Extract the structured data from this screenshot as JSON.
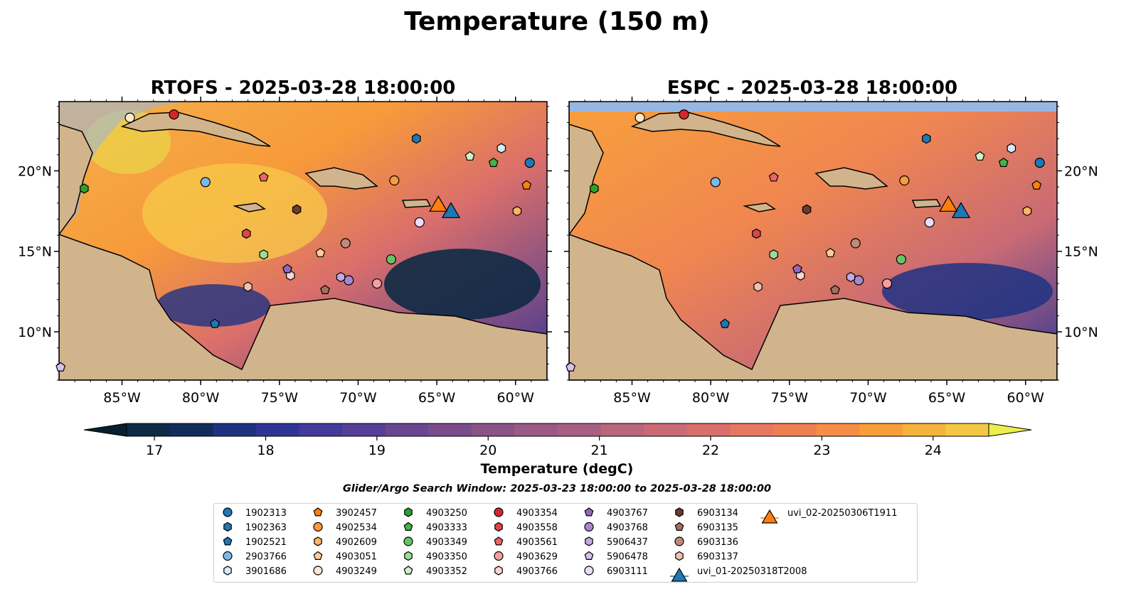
{
  "figure": {
    "suptitle": "Temperature (150 m)",
    "window_text": "Glider/Argo Search Window: 2025-03-23 18:00:00 to 2025-03-28 18:00:00"
  },
  "chart_data": {
    "type": "heatmap",
    "panels": [
      {
        "title": "RTOFS - 2025-03-28 18:00:00",
        "model": "RTOFS"
      },
      {
        "title": "ESPC - 2025-03-28 18:00:00",
        "model": "ESPC"
      }
    ],
    "lon_range": [
      -89,
      -58
    ],
    "lat_range": [
      7,
      24.3
    ],
    "x_ticks": [
      "85°W",
      "80°W",
      "75°W",
      "70°W",
      "65°W",
      "60°W"
    ],
    "x_tick_values": [
      -85,
      -80,
      -75,
      -70,
      -65,
      -60
    ],
    "y_ticks": [
      "20°N",
      "15°N",
      "10°N"
    ],
    "y_tick_values": [
      20,
      15,
      10
    ],
    "colorbar": {
      "label": "Temperature (degC)",
      "min": 16.75,
      "max": 24.5,
      "step": 0.5,
      "ticks": [
        "17",
        "18",
        "19",
        "20",
        "21",
        "22",
        "23",
        "24"
      ],
      "tick_values": [
        17,
        18,
        19,
        20,
        21,
        22,
        23,
        24
      ],
      "colors": [
        "#0e2a45",
        "#102d5c",
        "#1e3282",
        "#2f3596",
        "#433a9c",
        "#563f98",
        "#6a4691",
        "#7b4c8c",
        "#8b5288",
        "#9a5a85",
        "#a95f82",
        "#b9657c",
        "#c96a75",
        "#d96e6c",
        "#e67860",
        "#ef8052",
        "#f58d44",
        "#f79e3a",
        "#f7b23b",
        "#f4c846"
      ],
      "under_color": "#05202f",
      "over_color": "#ecef4a"
    },
    "series": [
      {
        "name": "1902313",
        "marker": "circle",
        "color": "#1f77b4",
        "lon": -59.1,
        "lat": 20.5
      },
      {
        "name": "1902363",
        "marker": "hexagon",
        "color": "#1f77b4",
        "lon": -66.3,
        "lat": 22.0
      },
      {
        "name": "1902521",
        "marker": "pentagon",
        "color": "#1f77b4",
        "lon": -79.1,
        "lat": 10.5
      },
      {
        "name": "2903766",
        "marker": "circle",
        "color": "#7db9e8",
        "lon": -79.7,
        "lat": 19.3
      },
      {
        "name": "3901686",
        "marker": "hexagon",
        "color": "#d6ebfa",
        "lon": -60.9,
        "lat": 21.4
      },
      {
        "name": "3902457",
        "marker": "pentagon",
        "color": "#ff7f0e",
        "lon": -59.3,
        "lat": 19.1
      },
      {
        "name": "4902534",
        "marker": "circle",
        "color": "#ff9a3c",
        "lon": -67.7,
        "lat": 19.4
      },
      {
        "name": "4902609",
        "marker": "hexagon",
        "color": "#ffb366",
        "lon": -59.9,
        "lat": 17.5
      },
      {
        "name": "4903051",
        "marker": "pentagon",
        "color": "#ffcc99",
        "lon": -72.4,
        "lat": 14.9
      },
      {
        "name": "4903249",
        "marker": "circle",
        "color": "#ffe6cc",
        "lon": -84.5,
        "lat": 23.3
      },
      {
        "name": "4903250",
        "marker": "hexagon",
        "color": "#2ca02c",
        "lon": -87.4,
        "lat": 18.9
      },
      {
        "name": "4903333",
        "marker": "pentagon",
        "color": "#44b244",
        "lon": -61.4,
        "lat": 20.5
      },
      {
        "name": "4903349",
        "marker": "circle",
        "color": "#66c466",
        "lon": -67.9,
        "lat": 14.5
      },
      {
        "name": "4903350",
        "marker": "hexagon",
        "color": "#99dd99",
        "lon": -76.0,
        "lat": 14.8
      },
      {
        "name": "4903352",
        "marker": "pentagon",
        "color": "#ccf2cc",
        "lon": -62.9,
        "lat": 20.9
      },
      {
        "name": "4903354",
        "marker": "circle",
        "color": "#d62728",
        "lon": -81.7,
        "lat": 23.5
      },
      {
        "name": "4903558",
        "marker": "hexagon",
        "color": "#e04444",
        "lon": -77.1,
        "lat": 16.1
      },
      {
        "name": "4903561",
        "marker": "pentagon",
        "color": "#e86666",
        "lon": -76.0,
        "lat": 19.6
      },
      {
        "name": "4903629",
        "marker": "circle",
        "color": "#f4a0a0",
        "lon": -68.8,
        "lat": 13.0
      },
      {
        "name": "4903766",
        "marker": "hexagon",
        "color": "#fad4d4",
        "lon": -74.3,
        "lat": 13.5
      },
      {
        "name": "4903767",
        "marker": "pentagon",
        "color": "#9467bd",
        "lon": -74.5,
        "lat": 13.9
      },
      {
        "name": "4903768",
        "marker": "circle",
        "color": "#a887cc",
        "lon": -70.6,
        "lat": 13.2
      },
      {
        "name": "5906437",
        "marker": "hexagon",
        "color": "#c5a8e0",
        "lon": -71.1,
        "lat": 13.4
      },
      {
        "name": "5906478",
        "marker": "pentagon",
        "color": "#d7bff0",
        "lon": -88.9,
        "lat": 7.8
      },
      {
        "name": "6903111",
        "marker": "circle",
        "color": "#ecdcfc",
        "lon": -66.1,
        "lat": 16.8
      },
      {
        "name": "6903134",
        "marker": "hexagon",
        "color": "#6b3b2e",
        "lon": -73.9,
        "lat": 17.6
      },
      {
        "name": "6903135",
        "marker": "pentagon",
        "color": "#a3705f",
        "lon": -72.1,
        "lat": 12.6
      },
      {
        "name": "6903136",
        "marker": "circle",
        "color": "#c08a7a",
        "lon": -70.8,
        "lat": 15.5
      },
      {
        "name": "6903137",
        "marker": "hexagon",
        "color": "#f0c0b0",
        "lon": -77.0,
        "lat": 12.8
      },
      {
        "name": "uvi_01-20250318T2008",
        "marker": "triangle",
        "color": "#1f77b4",
        "lon": -64.1,
        "lat": 17.4
      },
      {
        "name": "uvi_02-20250306T1911",
        "marker": "triangle",
        "color": "#ff7f0e",
        "lon": -64.9,
        "lat": 17.8
      }
    ]
  },
  "palette": {
    "land": "#d2b48c",
    "shelf": "#97b6e1",
    "border_line": "#000000"
  }
}
